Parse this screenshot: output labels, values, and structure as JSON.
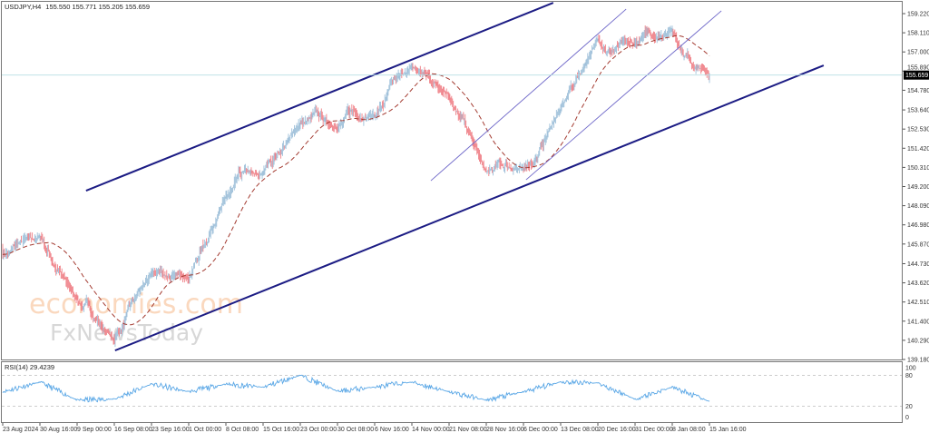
{
  "header": {
    "symbol": "USDJPY,H4",
    "ohlc": "155.550 155.771 155.205 155.659"
  },
  "watermark": {
    "line1": "economies.com",
    "line2": "FxNewsToday"
  },
  "colors": {
    "bull": "#9dbfd9",
    "bear": "#ef7f86",
    "ma": "#a33a30",
    "channel": "#1c1c84",
    "thin_channel": "#6d66c8",
    "price_line": "#b7dde3",
    "rsi": "#5aa7e6"
  },
  "chart_data": {
    "type": "candlestick",
    "title": "USDJPY,H4",
    "price_axis": {
      "ticks": [
        "159.220",
        "158.110",
        "157.000",
        "155.890",
        "154.780",
        "153.640",
        "152.530",
        "151.420",
        "150.310",
        "149.200",
        "148.090",
        "146.980",
        "145.870",
        "144.730",
        "143.620",
        "142.510",
        "141.400",
        "140.290",
        "139.180"
      ],
      "range": [
        139.18,
        159.22
      ]
    },
    "current_price": "155.659",
    "time_labels": [
      "23 Aug 2024",
      "30 Aug 16:00",
      "9 Sep 00:00",
      "16 Sep 08:00",
      "23 Sep 16:00",
      "1 Oct 00:00",
      "8 Oct 08:00",
      "15 Oct 16:00",
      "23 Oct 00:00",
      "30 Oct 08:00",
      "6 Nov 16:00",
      "14 Nov 00:00",
      "21 Nov 08:00",
      "28 Nov 16:00",
      "6 Dec 00:00",
      "13 Dec 08:00",
      "20 Dec 16:00",
      "31 Dec 00:00",
      "8 Jan 08:00",
      "15 Jan 16:00"
    ],
    "approx_close_at_labels": [
      145.3,
      146.3,
      142.6,
      140.3,
      144.2,
      143.9,
      148.7,
      150.0,
      152.9,
      152.6,
      153.4,
      156.2,
      154.5,
      150.0,
      150.3,
      153.7,
      157.8,
      157.5,
      158.2,
      155.659
    ],
    "last_bar": {
      "open": 155.55,
      "high": 155.771,
      "low": 155.205,
      "close": 155.659
    },
    "moving_average": {
      "style": "dashed"
    },
    "trendlines": [
      {
        "name": "upper-channel",
        "points": [
          {
            "t": 2.24,
            "price": 148.96
          },
          {
            "t": 14.8,
            "price": 159.85
          }
        ],
        "weight": "thick"
      },
      {
        "name": "lower-channel",
        "points": [
          {
            "t": 3.02,
            "price": 139.7
          },
          {
            "t": 22.07,
            "price": 156.22
          }
        ],
        "weight": "thick"
      },
      {
        "name": "short-channel-upper",
        "points": [
          {
            "t": 11.51,
            "price": 149.54
          },
          {
            "t": 16.76,
            "price": 159.48
          }
        ],
        "weight": "thin"
      },
      {
        "name": "short-channel-lower",
        "points": [
          {
            "t": 14.07,
            "price": 149.59
          },
          {
            "t": 19.32,
            "price": 159.38
          }
        ],
        "weight": "thin"
      }
    ],
    "rsi": {
      "label": "RSI(14) 29.4239",
      "period": 14,
      "value": 29.4239,
      "levels": [
        "100",
        "80",
        "20",
        "0"
      ],
      "approx_at_labels": [
        48,
        67,
        32,
        34,
        63,
        48,
        63,
        57,
        80,
        49,
        57,
        67,
        48,
        32,
        48,
        67,
        65,
        34,
        57,
        29.4
      ]
    }
  }
}
